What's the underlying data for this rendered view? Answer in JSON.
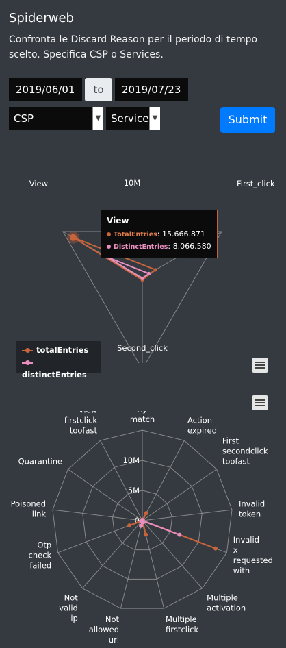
{
  "header": {
    "title": "Spiderweb",
    "description": "Confronta le Discard Reason per il periodo di tempo scelto. Specifica CSP o Services."
  },
  "filters": {
    "date_from": "2019/06/01",
    "date_to_label": "to",
    "date_to": "2019/07/23",
    "csp_selected": "CSP",
    "service_selected": "Service",
    "submit_label": "Submit"
  },
  "colors": {
    "total": "#c8643c",
    "distinct": "#e88fc0",
    "grid": "#888888",
    "submit": "#007bff"
  },
  "tooltip": {
    "title": "View",
    "rows": [
      {
        "name": "TotalEntries",
        "value": "15.666.871"
      },
      {
        "name": "DistinctEntries",
        "value": "8.066.580"
      }
    ]
  },
  "chart_data": [
    {
      "type": "radar",
      "axes": [
        "View",
        "First_click",
        "Second_click"
      ],
      "tick_labels": [
        "10M"
      ],
      "rmax": 18000000,
      "series": [
        {
          "name": "totalEntries",
          "values": [
            15666871,
            3000000,
            500000
          ]
        },
        {
          "name": "distinctEntries",
          "values": [
            8066580,
            1500000,
            200000
          ]
        }
      ],
      "legend_position": "bottom-left",
      "legend": [
        "totalEntries",
        "distinctEntries"
      ]
    },
    {
      "type": "radar",
      "axes": [
        "Xy\nmatch",
        "Action\nexpired",
        "First\nsecondclick\ntoofast",
        "Invalid\ntoken",
        "Invalid\nx\nrequested\nwith",
        "Multiple\nactivation",
        "Multiple\nfirstclick",
        "Not\nallowed\nurl",
        "Not\nvalid\nip",
        "Otp\ncheck\nfailed",
        "Poisoned\nlink",
        "Quarantine",
        "View\nfirstclick\ntoofast"
      ],
      "tick_labels": [
        "0",
        "5M",
        "10M"
      ],
      "rmax": 15000000,
      "series": [
        {
          "name": "totalEntries",
          "values": [
            100000,
            1400000,
            150000,
            50000,
            13000000,
            100000,
            2400000,
            200000,
            100000,
            2300000,
            100000,
            100000,
            100000
          ]
        },
        {
          "name": "distinctEntries",
          "values": [
            80000,
            100000,
            100000,
            30000,
            6600000,
            50000,
            300000,
            900000,
            100000,
            200000,
            100000,
            100000,
            100000
          ]
        }
      ]
    }
  ]
}
